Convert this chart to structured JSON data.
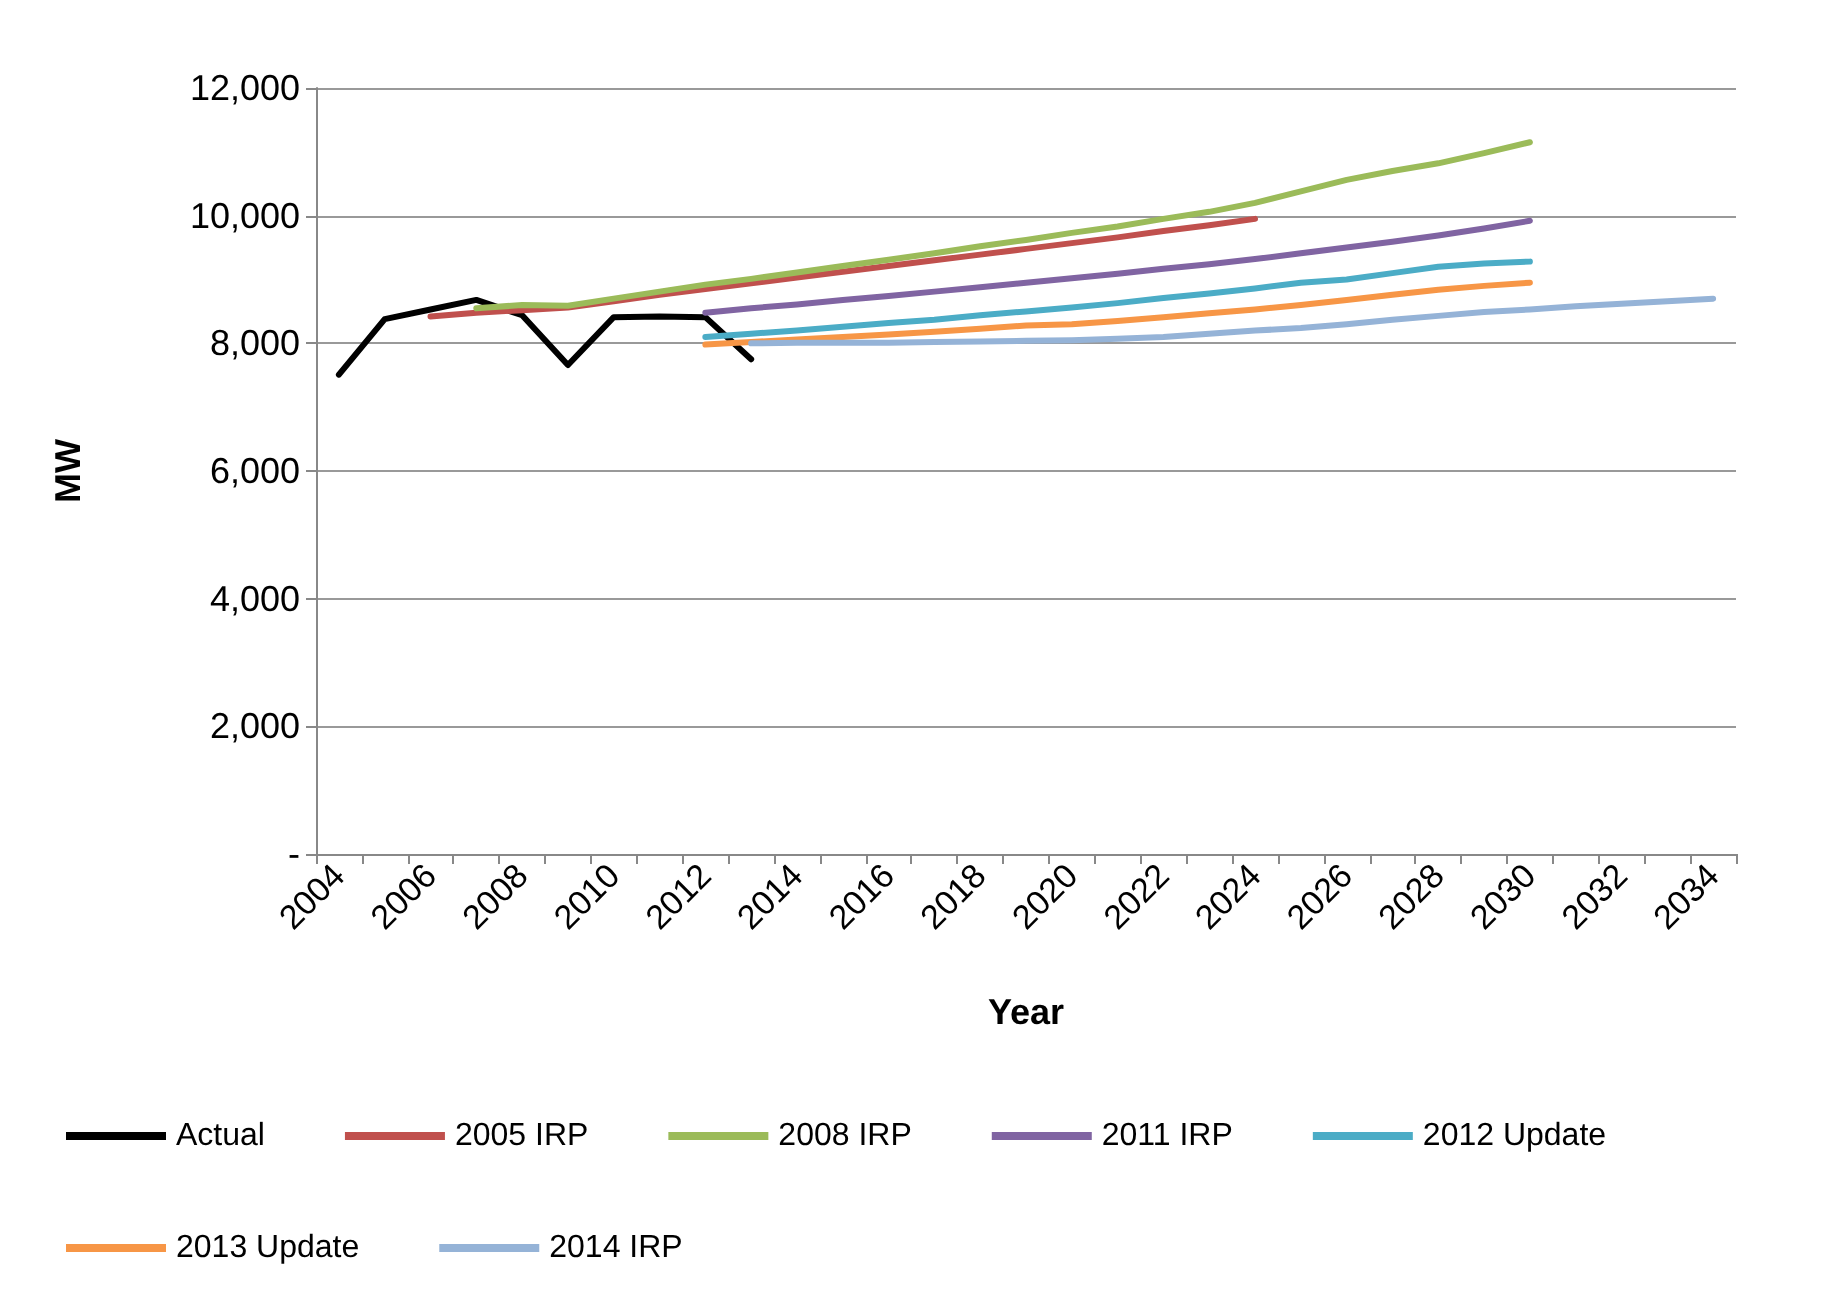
{
  "chart_data": {
    "type": "line",
    "xlabel": "Year",
    "ylabel": "MW",
    "categories": [
      "2004",
      null,
      "2006",
      null,
      "2008",
      null,
      "2010",
      null,
      "2012",
      null,
      "2014",
      null,
      "2016",
      null,
      "2018",
      null,
      "2020",
      null,
      "2022",
      null,
      "2024",
      null,
      "2026",
      null,
      "2028",
      null,
      "2030",
      null,
      "2032",
      null,
      "2034"
    ],
    "ylim": [
      0,
      12000
    ],
    "yticks": [
      {
        "value": 0,
        "label": "-"
      },
      {
        "value": 2000,
        "label": "2,000"
      },
      {
        "value": 4000,
        "label": "4,000"
      },
      {
        "value": 6000,
        "label": "6,000"
      },
      {
        "value": 8000,
        "label": "8,000"
      },
      {
        "value": 10000,
        "label": "10,000"
      },
      {
        "value": 12000,
        "label": "12,000"
      }
    ],
    "grid": "y",
    "legend": "bottom",
    "marker": "none",
    "line_style": "solid",
    "series": [
      {
        "name": "Actual",
        "color": "#000000",
        "values": [
          7510,
          8380,
          8530,
          8680,
          8440,
          7660,
          8410,
          8420,
          8410,
          7750,
          null,
          null,
          null,
          null,
          null,
          null,
          null,
          null,
          null,
          null,
          null,
          null,
          null,
          null,
          null,
          null,
          null,
          null,
          null,
          null,
          null
        ]
      },
      {
        "name": "2005 IRP",
        "color": "#c0504d",
        "values": [
          null,
          null,
          8420,
          8480,
          8520,
          8560,
          8660,
          8760,
          8850,
          8940,
          9030,
          9120,
          9210,
          9300,
          9390,
          9480,
          9570,
          9660,
          9760,
          9850,
          9950,
          null,
          null,
          null,
          null,
          null,
          null,
          null,
          null,
          null,
          null
        ]
      },
      {
        "name": "2008 IRP",
        "color": "#9bbb59",
        "values": [
          null,
          null,
          null,
          8550,
          8600,
          8590,
          8700,
          8810,
          8920,
          9010,
          9110,
          9210,
          9310,
          9410,
          9520,
          9620,
          9730,
          9830,
          9950,
          10060,
          10200,
          10380,
          10560,
          10700,
          10820,
          10980,
          11150,
          null,
          null,
          null,
          null
        ]
      },
      {
        "name": "2011 IRP",
        "color": "#8064a2",
        "values": [
          null,
          null,
          null,
          null,
          null,
          null,
          null,
          null,
          8480,
          8550,
          8610,
          8680,
          8740,
          8810,
          8880,
          8950,
          9020,
          9090,
          9170,
          9240,
          9320,
          9410,
          9500,
          9590,
          9690,
          9800,
          9920,
          null,
          null,
          null,
          null
        ]
      },
      {
        "name": "2012 Update",
        "color": "#4bacc6",
        "values": [
          null,
          null,
          null,
          null,
          null,
          null,
          null,
          null,
          8100,
          8150,
          8200,
          8260,
          8320,
          8370,
          8440,
          8500,
          8560,
          8630,
          8710,
          8780,
          8860,
          8950,
          9000,
          9100,
          9200,
          9250,
          9280,
          null,
          null,
          null,
          null
        ]
      },
      {
        "name": "2013 Update",
        "color": "#f79646",
        "values": [
          null,
          null,
          null,
          null,
          null,
          null,
          null,
          null,
          7980,
          8020,
          8060,
          8100,
          8140,
          8180,
          8230,
          8280,
          8300,
          8350,
          8410,
          8470,
          8530,
          8600,
          8680,
          8760,
          8840,
          8900,
          8950,
          null,
          null,
          null,
          null
        ]
      },
      {
        "name": "2014 IRP",
        "color": "#95b3d7",
        "values": [
          null,
          null,
          null,
          null,
          null,
          null,
          null,
          null,
          null,
          8000,
          8010,
          8010,
          8010,
          8020,
          8030,
          8040,
          8050,
          8070,
          8100,
          8150,
          8200,
          8240,
          8300,
          8370,
          8430,
          8490,
          8530,
          8580,
          8620,
          8660,
          8700
        ]
      }
    ]
  }
}
